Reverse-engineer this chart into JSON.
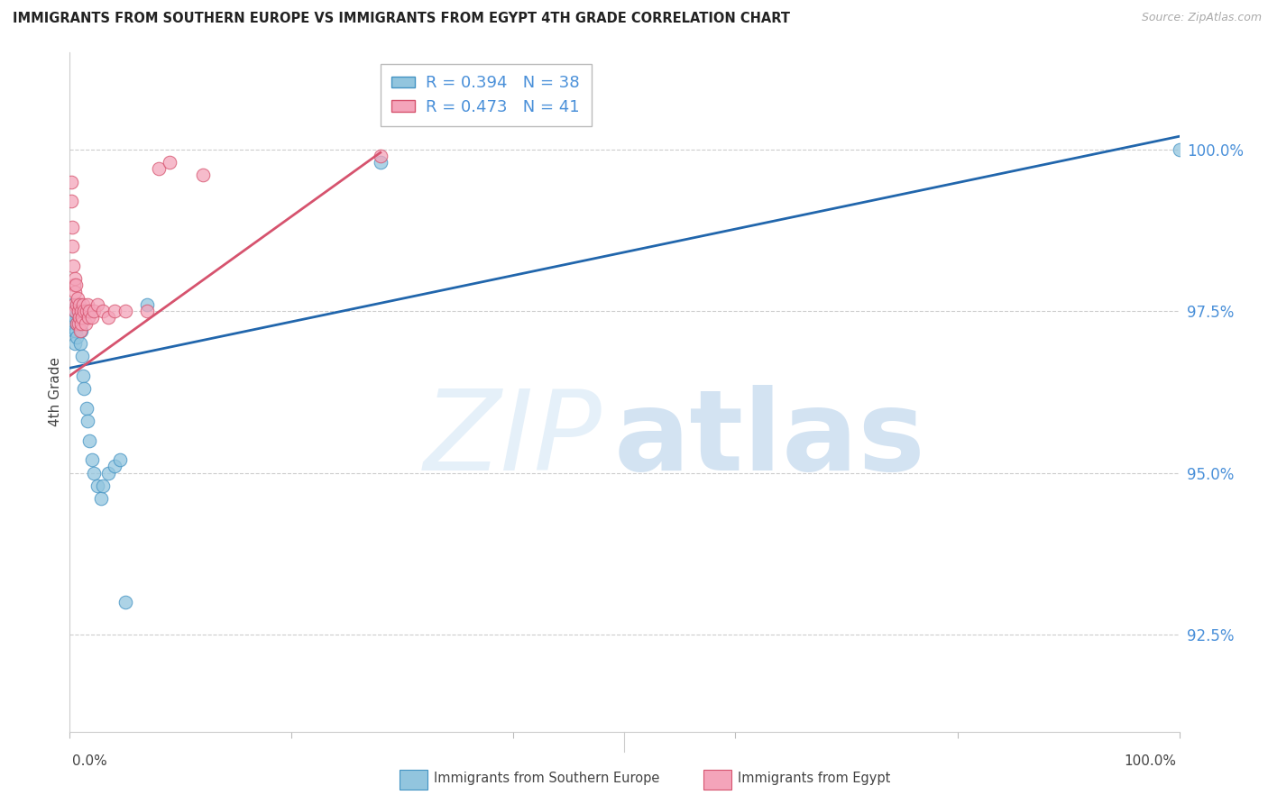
{
  "title": "IMMIGRANTS FROM SOUTHERN EUROPE VS IMMIGRANTS FROM EGYPT 4TH GRADE CORRELATION CHART",
  "source": "Source: ZipAtlas.com",
  "ylabel": "4th Grade",
  "legend_blue_r": "R = 0.394",
  "legend_blue_n": "N = 38",
  "legend_pink_r": "R = 0.473",
  "legend_pink_n": "N = 41",
  "ytick_labels": [
    "92.5%",
    "95.0%",
    "97.5%",
    "100.0%"
  ],
  "ytick_values": [
    92.5,
    95.0,
    97.5,
    100.0
  ],
  "ymin": 91.0,
  "ymax": 101.5,
  "xmin": 0.0,
  "xmax": 100.0,
  "blue_marker_color": "#92c5de",
  "blue_edge_color": "#4393c3",
  "pink_marker_color": "#f4a4ba",
  "pink_edge_color": "#d6536e",
  "blue_line_color": "#2166ac",
  "pink_line_color": "#d6536e",
  "blue_scatter_x": [
    0.2,
    0.25,
    0.3,
    0.35,
    0.4,
    0.4,
    0.45,
    0.5,
    0.5,
    0.55,
    0.6,
    0.65,
    0.7,
    0.75,
    0.8,
    0.85,
    0.9,
    0.95,
    1.0,
    1.0,
    1.1,
    1.2,
    1.3,
    1.5,
    1.6,
    1.8,
    2.0,
    2.2,
    2.5,
    2.8,
    3.0,
    3.5,
    4.0,
    4.5,
    5.0,
    7.0,
    28.0,
    100.0
  ],
  "blue_scatter_y": [
    97.6,
    97.5,
    97.4,
    97.3,
    97.5,
    97.2,
    97.4,
    97.5,
    97.0,
    97.2,
    97.3,
    97.1,
    97.5,
    97.6,
    97.5,
    97.4,
    97.3,
    97.0,
    97.5,
    97.2,
    96.8,
    96.5,
    96.3,
    96.0,
    95.8,
    95.5,
    95.2,
    95.0,
    94.8,
    94.6,
    94.8,
    95.0,
    95.1,
    95.2,
    93.0,
    97.6,
    99.8,
    100.0
  ],
  "pink_scatter_x": [
    0.1,
    0.15,
    0.2,
    0.25,
    0.3,
    0.35,
    0.4,
    0.45,
    0.5,
    0.5,
    0.55,
    0.6,
    0.65,
    0.7,
    0.75,
    0.8,
    0.85,
    0.9,
    0.95,
    1.0,
    1.0,
    1.1,
    1.2,
    1.3,
    1.4,
    1.5,
    1.6,
    1.7,
    1.8,
    2.0,
    2.2,
    2.5,
    3.0,
    3.5,
    4.0,
    5.0,
    7.0,
    8.0,
    9.0,
    12.0,
    28.0
  ],
  "pink_scatter_y": [
    99.5,
    99.2,
    98.8,
    98.5,
    98.2,
    97.9,
    97.6,
    98.0,
    97.8,
    97.5,
    97.9,
    97.6,
    97.3,
    97.7,
    97.5,
    97.3,
    97.6,
    97.4,
    97.2,
    97.5,
    97.3,
    97.4,
    97.6,
    97.5,
    97.3,
    97.5,
    97.6,
    97.4,
    97.5,
    97.4,
    97.5,
    97.6,
    97.5,
    97.4,
    97.5,
    97.5,
    97.5,
    99.7,
    99.8,
    99.6,
    99.9
  ],
  "blue_line_x0": 0.0,
  "blue_line_x1": 100.0,
  "blue_line_y0": 96.62,
  "blue_line_y1": 100.2,
  "pink_line_x0": 0.0,
  "pink_line_x1": 28.0,
  "pink_line_y0": 96.5,
  "pink_line_y1": 99.95,
  "watermark_zip_color": "#d0e4f5",
  "watermark_atlas_color": "#b0cce8",
  "grid_color": "#cccccc",
  "tick_color": "#4a90d9",
  "text_color": "#444444",
  "source_color": "#aaaaaa",
  "bottom_legend_label1": "Immigrants from Southern Europe",
  "bottom_legend_label2": "Immigrants from Egypt"
}
